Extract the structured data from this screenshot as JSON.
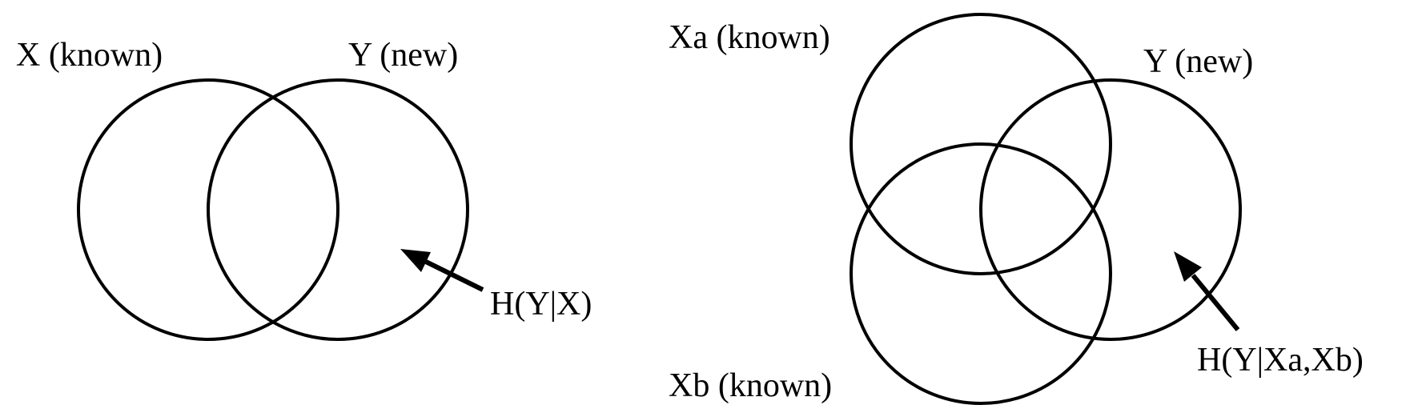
{
  "colors": {
    "stroke": "#000000",
    "background": "#ffffff"
  },
  "left_diagram": {
    "circle_x_label": "X (known)",
    "circle_y_label": "Y (new)",
    "arrow_label": "H(Y|X)"
  },
  "right_diagram": {
    "circle_xa_label": "Xa (known)",
    "circle_y_label": "Y (new)",
    "circle_xb_label": "Xb (known)",
    "arrow_label": "H(Y|Xa,Xb)"
  }
}
